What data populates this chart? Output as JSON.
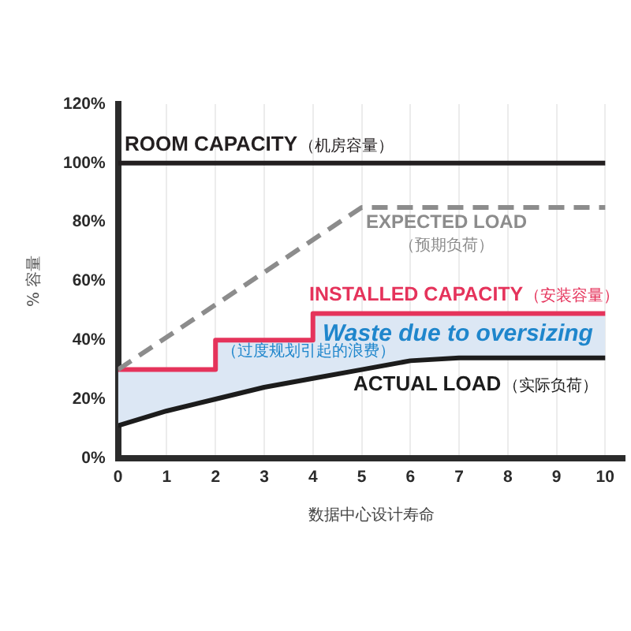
{
  "chart_data": {
    "type": "line",
    "xlabel": "数据中心设计寿命",
    "ylabel": "% 容量",
    "xlim": [
      0,
      10.4
    ],
    "xticks": [
      0,
      1,
      2,
      3,
      4,
      5,
      6,
      7,
      8,
      9,
      10
    ],
    "ylim": [
      0,
      120
    ],
    "yticks": [
      {
        "value": 0,
        "label": "0%"
      },
      {
        "value": 20,
        "label": "20%"
      },
      {
        "value": 40,
        "label": "40%"
      },
      {
        "value": 60,
        "label": "60%"
      },
      {
        "value": 80,
        "label": "80%"
      },
      {
        "value": 100,
        "label": "100%"
      },
      {
        "value": 120,
        "label": "120%"
      }
    ],
    "grid": "x",
    "legend": false,
    "marker": "none",
    "series": [
      {
        "name": "ROOM CAPACITY（机房容量）",
        "color": "#231f20",
        "x": [
          0,
          10
        ],
        "values": [
          100,
          100
        ]
      },
      {
        "name": "EXPECTED LOAD（预期负荷）",
        "color": "#8c8c8c",
        "line_style": "dashed",
        "x": [
          0,
          5,
          10
        ],
        "values": [
          30,
          85,
          85
        ]
      },
      {
        "name": "INSTALLED CAPACITY（安装容量）",
        "type": "step",
        "color": "#e5335b",
        "x": [
          0,
          2,
          4,
          10
        ],
        "values": [
          30,
          40,
          49,
          49
        ]
      },
      {
        "name": "ACTUAL LOAD（实际负荷）",
        "color": "#1c1c1c",
        "x": [
          0,
          1,
          2,
          2,
          3,
          4,
          4,
          5,
          6,
          7,
          8,
          9,
          10
        ],
        "values": [
          11,
          16,
          20,
          20,
          24,
          27,
          27,
          30,
          33,
          34,
          34,
          34,
          34
        ],
        "lower": [
          11,
          16,
          20,
          20,
          24,
          27,
          27,
          30,
          33,
          34,
          34,
          34,
          34
        ],
        "upper": [
          30,
          30,
          30,
          40,
          40,
          40,
          49,
          49,
          49,
          49,
          49,
          49,
          49
        ]
      }
    ],
    "annotations": [
      {
        "text": "Waste due to oversizing（过度规划引起的浪费）",
        "x": 4.2,
        "y": 42
      }
    ]
  }
}
